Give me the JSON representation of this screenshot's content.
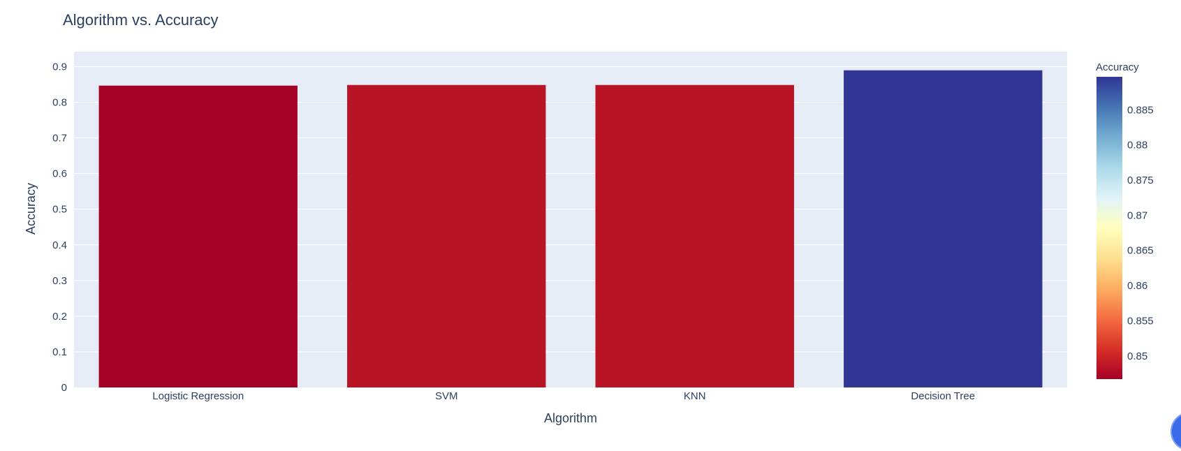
{
  "chart_data": {
    "type": "bar",
    "title": "Algorithm vs. Accuracy",
    "xlabel": "Algorithm",
    "ylabel": "Accuracy",
    "categories": [
      "Logistic Regression",
      "SVM",
      "KNN",
      "Decision Tree"
    ],
    "values": [
      0.8467,
      0.8485,
      0.8485,
      0.8897
    ],
    "bar_colors": [
      "#a50026",
      "#b81426",
      "#b81426",
      "#313695"
    ],
    "ylim": [
      0,
      0.942
    ],
    "yticks": [
      0,
      0.1,
      0.2,
      0.3,
      0.4,
      0.5,
      0.6,
      0.7,
      0.8,
      0.9
    ],
    "ytick_labels": [
      "0",
      "0.1",
      "0.2",
      "0.3",
      "0.4",
      "0.5",
      "0.6",
      "0.7",
      "0.8",
      "0.9"
    ],
    "grid": true,
    "colorbar": {
      "title": "Accuracy",
      "range": [
        0.8467,
        0.8897
      ],
      "ticks": [
        0.85,
        0.855,
        0.86,
        0.865,
        0.87,
        0.875,
        0.88,
        0.885
      ],
      "tick_labels": [
        "0.85",
        "0.855",
        "0.86",
        "0.865",
        "0.87",
        "0.875",
        "0.88",
        "0.885"
      ],
      "colorscale": [
        "#a50026",
        "#d73027",
        "#f46d43",
        "#fdae61",
        "#fee090",
        "#ffffbf",
        "#e0f3f8",
        "#abd9e9",
        "#74add1",
        "#4575b4",
        "#313695"
      ]
    }
  },
  "colors": {
    "plot_bg": "#e5ecf6",
    "grid": "#ffffff",
    "text": "#2a3f5f",
    "fab": "#3b6be8"
  }
}
